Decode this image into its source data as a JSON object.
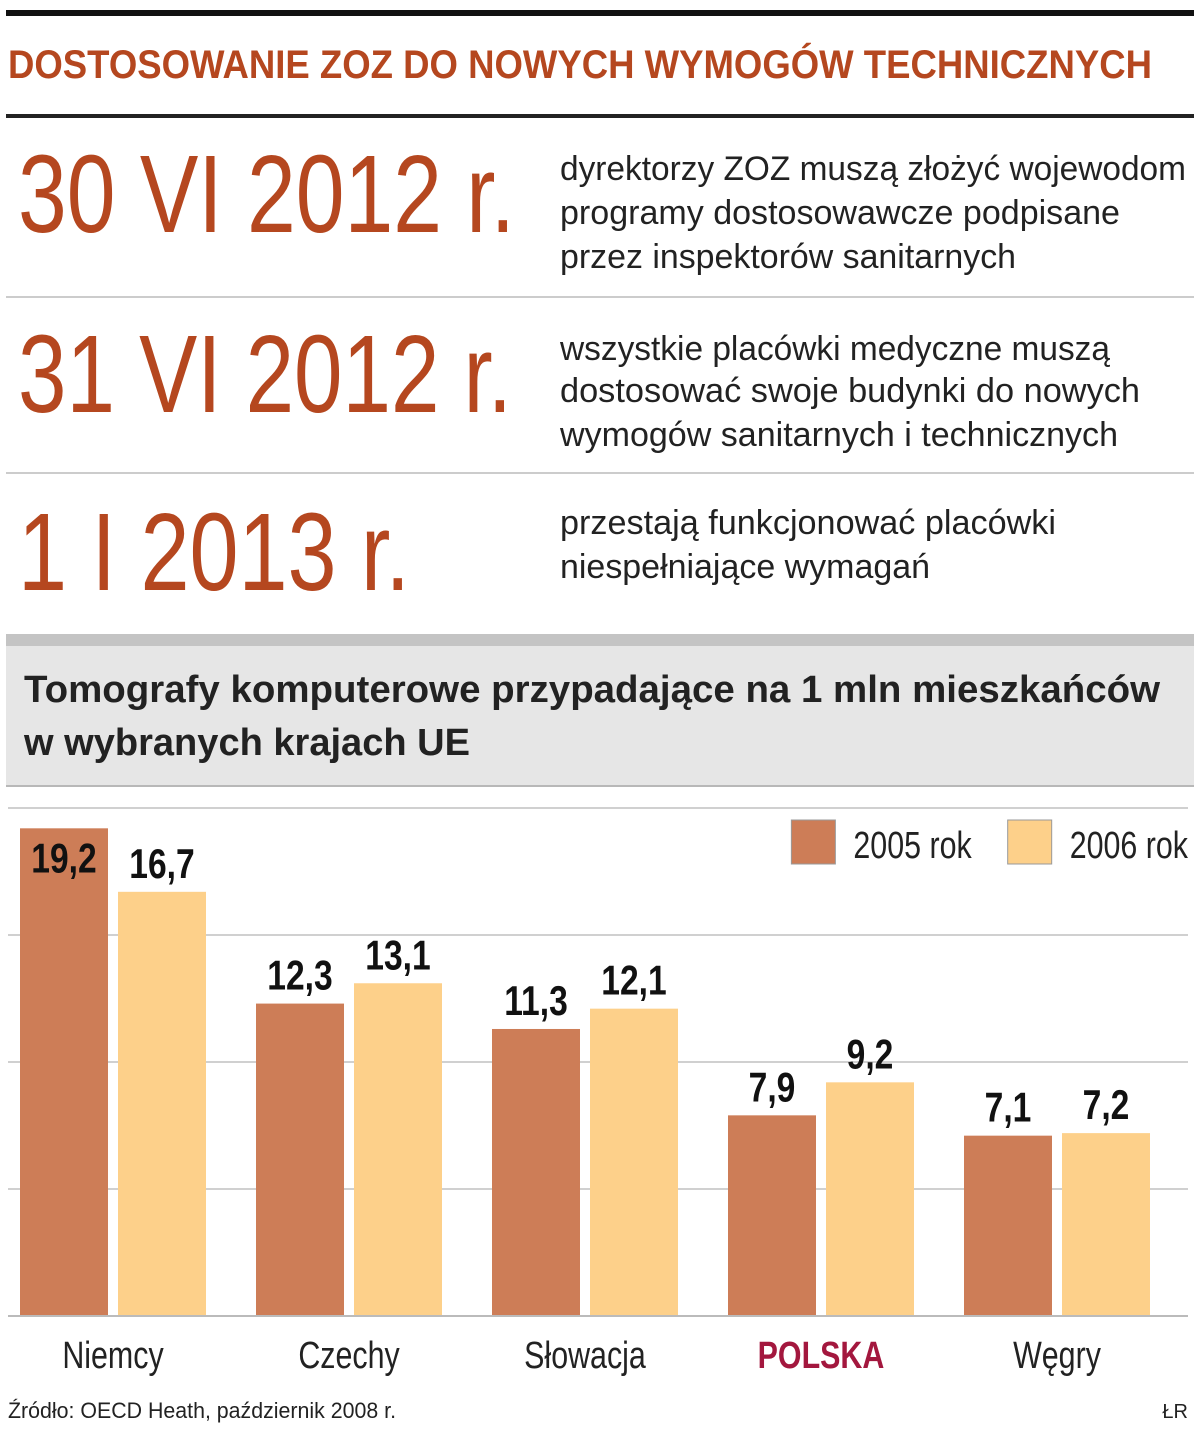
{
  "header": {
    "title": "DOSTOSOWANIE ZOZ DO NOWYCH WYMOGÓW TECHNICZNYCH"
  },
  "timeline": [
    {
      "date": "30 VI 2012 r.",
      "lines": [
        "dyrektorzy ZOZ muszą złożyć wojewodom",
        "programy dostosowawcze podpisane",
        "przez inspektorów sanitarnych"
      ]
    },
    {
      "date": "31 VI 2012 r.",
      "lines": [
        "wszystkie placówki medyczne muszą",
        "dostosować swoje budynki do nowych",
        "wymogów sanitarnych i technicznych"
      ]
    },
    {
      "date": "1 I 2013 r.",
      "lines": [
        "przestają funkcjonować placówki",
        "niespełniające wymagań"
      ]
    }
  ],
  "chart_data": {
    "type": "bar",
    "title": [
      "Tomografy komputerowe przypadające na 1 mln mieszkańców",
      "w wybranych krajach UE"
    ],
    "categories": [
      "Niemcy",
      "Czechy",
      "Słowacja",
      "POLSKA",
      "Węgry"
    ],
    "highlight": "POLSKA",
    "highlight_color": "#a3173e",
    "series": [
      {
        "name": "2005 rok",
        "color": "#cd7d57",
        "values": [
          19.2,
          12.3,
          11.3,
          7.9,
          7.1
        ],
        "value_labels": [
          "19,2",
          "12,3",
          "11,3",
          "7,9",
          "7,1"
        ]
      },
      {
        "name": "2006 rok",
        "color": "#fdd08a",
        "values": [
          16.7,
          13.1,
          12.1,
          9.2,
          7.2
        ],
        "value_labels": [
          "16,7",
          "13,1",
          "12,1",
          "9,2",
          "7,2"
        ]
      }
    ],
    "ylim": [
      0,
      20
    ],
    "yticks": [
      0,
      5,
      10,
      15,
      20
    ],
    "grid": true,
    "legend": "upper right",
    "source": "Źródło: OECD Heath, październik 2008 r.",
    "credit": "ŁR"
  }
}
